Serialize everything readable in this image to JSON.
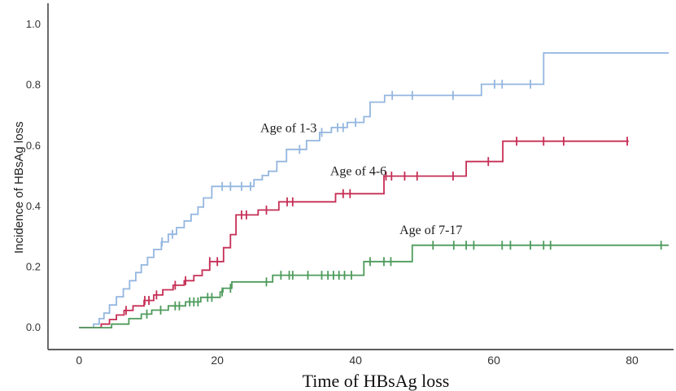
{
  "chart_data": {
    "type": "line",
    "subtype": "kaplan-meier-step",
    "title": "",
    "xlabel": "Time of HBsAg loss",
    "ylabel": "Incidence of HBsAg loss",
    "xlim": [
      -4.5,
      86
    ],
    "ylim": [
      -0.072,
      1.07
    ],
    "xticks": [
      0,
      20,
      40,
      60,
      80
    ],
    "yticks": [
      0.0,
      0.2,
      0.4,
      0.6,
      0.8,
      1.0
    ],
    "ytick_labels": [
      "0.0",
      "0.2",
      "0.4",
      "0.6",
      "0.8",
      "1.0"
    ],
    "grid": false,
    "legend": "inline-labels",
    "series": [
      {
        "name": "Age of 1-3",
        "color": "#93B6DF",
        "end": 85.3,
        "steps": [
          [
            0,
            0
          ],
          [
            2.1,
            0.012
          ],
          [
            2.9,
            0.03
          ],
          [
            3.6,
            0.048
          ],
          [
            4.4,
            0.075
          ],
          [
            5.4,
            0.102
          ],
          [
            6.4,
            0.128
          ],
          [
            7.3,
            0.155
          ],
          [
            8.2,
            0.182
          ],
          [
            9.0,
            0.207
          ],
          [
            9.9,
            0.232
          ],
          [
            10.8,
            0.258
          ],
          [
            11.9,
            0.283
          ],
          [
            12.9,
            0.308
          ],
          [
            14.1,
            0.33
          ],
          [
            15.2,
            0.352
          ],
          [
            16.2,
            0.374
          ],
          [
            17.2,
            0.398
          ],
          [
            18.0,
            0.428
          ],
          [
            19.2,
            0.466
          ],
          [
            25.3,
            0.488
          ],
          [
            26.5,
            0.502
          ],
          [
            27.4,
            0.516
          ],
          [
            28.6,
            0.548
          ],
          [
            30.0,
            0.588
          ],
          [
            32.9,
            0.617
          ],
          [
            34.8,
            0.644
          ],
          [
            36.5,
            0.66
          ],
          [
            38.8,
            0.677
          ],
          [
            41.2,
            0.696
          ],
          [
            42.1,
            0.744
          ],
          [
            44.2,
            0.766
          ],
          [
            58.2,
            0.803
          ],
          [
            67.2,
            0.906
          ]
        ],
        "censors": [
          12.0,
          13.5,
          20.7,
          21.9,
          23.5,
          24.8,
          31.9,
          35.1,
          37.4,
          38.2,
          40.0,
          45.3,
          48.2,
          54.1,
          60.1,
          61.2,
          65.3
        ]
      },
      {
        "name": "Age of 4-6",
        "color": "#C62E55",
        "end": 79.5,
        "steps": [
          [
            0,
            0
          ],
          [
            3.2,
            0.012
          ],
          [
            4.4,
            0.027
          ],
          [
            5.4,
            0.042
          ],
          [
            6.5,
            0.057
          ],
          [
            7.8,
            0.072
          ],
          [
            9.4,
            0.09
          ],
          [
            10.8,
            0.108
          ],
          [
            12.1,
            0.125
          ],
          [
            13.6,
            0.14
          ],
          [
            15.2,
            0.155
          ],
          [
            16.6,
            0.172
          ],
          [
            17.8,
            0.19
          ],
          [
            18.9,
            0.218
          ],
          [
            20.9,
            0.264
          ],
          [
            21.9,
            0.307
          ],
          [
            22.7,
            0.372
          ],
          [
            25.9,
            0.388
          ],
          [
            28.9,
            0.415
          ],
          [
            37.1,
            0.442
          ],
          [
            44.1,
            0.5
          ],
          [
            56.0,
            0.548
          ],
          [
            61.3,
            0.615
          ]
        ],
        "censors": [
          6.8,
          9.5,
          10.1,
          11.2,
          13.9,
          15.4,
          18.9,
          20.0,
          23.5,
          24.2,
          27.1,
          30.1,
          30.9,
          38.2,
          39.2,
          44.4,
          45.2,
          47.1,
          48.9,
          54.1,
          59.2,
          63.3,
          67.2,
          70.1,
          79.3
        ]
      },
      {
        "name": "Age of 7-17",
        "color": "#4E9B5C",
        "end": 85.3,
        "steps": [
          [
            0,
            0
          ],
          [
            4.7,
            0.012
          ],
          [
            7.2,
            0.03
          ],
          [
            9.0,
            0.045
          ],
          [
            10.5,
            0.058
          ],
          [
            12.9,
            0.072
          ],
          [
            15.4,
            0.085
          ],
          [
            17.6,
            0.1
          ],
          [
            20.4,
            0.118
          ],
          [
            20.8,
            0.13
          ],
          [
            22.1,
            0.151
          ],
          [
            28.0,
            0.173
          ],
          [
            41.2,
            0.218
          ],
          [
            48.2,
            0.272
          ]
        ],
        "censors": [
          9.8,
          11.8,
          13.9,
          14.5,
          16.0,
          16.6,
          17.2,
          18.6,
          19.2,
          20.7,
          21.9,
          27.1,
          29.2,
          30.4,
          30.9,
          33.1,
          35.1,
          36.0,
          36.8,
          37.6,
          38.4,
          39.4,
          42.1,
          44.1,
          45.1,
          51.2,
          54.2,
          56.0,
          57.1,
          61.2,
          62.4,
          65.3,
          67.2,
          68.2,
          84.2
        ]
      }
    ],
    "annotations": [
      {
        "text": "Age of 1-3",
        "x": 30.3,
        "y": 0.659
      },
      {
        "text": "Age of 4-6",
        "x": 40.4,
        "y": 0.517
      },
      {
        "text": "Age of 7-17",
        "x": 50.9,
        "y": 0.322
      }
    ]
  }
}
